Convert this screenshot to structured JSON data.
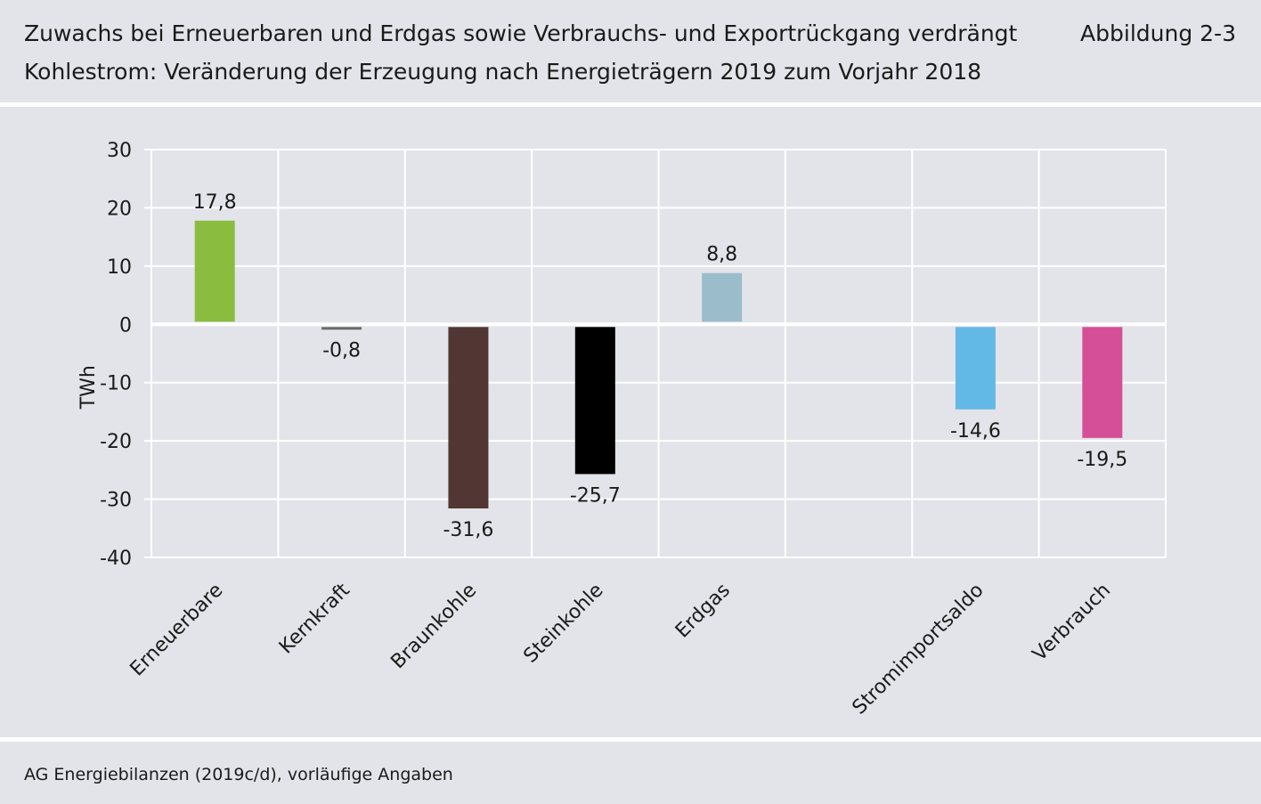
{
  "header": {
    "title_line1": "Zuwachs bei Erneuerbaren und Erdgas sowie Verbrauchs- und Exportrückgang verdrängt",
    "title_line2": "Kohlestrom: Veränderung der Erzeugung nach Energieträgern 2019 zum Vorjahr 2018",
    "figure_number": "Abbildung 2-3"
  },
  "footer": {
    "source": "AG Energiebilanzen (2019c/d), vorläufige Angaben"
  },
  "chart_data": {
    "type": "bar",
    "ylabel": "TWh",
    "ylim": [
      -40,
      30
    ],
    "yticks": [
      30,
      20,
      10,
      0,
      -10,
      -20,
      -30,
      -40
    ],
    "grid": true,
    "categories": [
      "Erneuerbare",
      "Kernkraft",
      "Braunkohle",
      "Steinkohle",
      "Erdgas",
      "",
      "Stromimportsaldo",
      "Verbrauch"
    ],
    "values": [
      17.8,
      -0.8,
      -31.6,
      -25.7,
      8.8,
      null,
      -14.6,
      -19.5
    ],
    "data_labels": [
      "17,8",
      "-0,8",
      "-31,6",
      "-25,7",
      "8,8",
      "",
      "-14,6",
      "-19,5"
    ],
    "colors": [
      "#8abd3f",
      "#6b6b6b",
      "#513634",
      "#000000",
      "#9bbccb",
      "",
      "#63b9e6",
      "#d44f98"
    ],
    "zero_line_color": "#ffffff",
    "gridline_color": "#ffffff"
  }
}
